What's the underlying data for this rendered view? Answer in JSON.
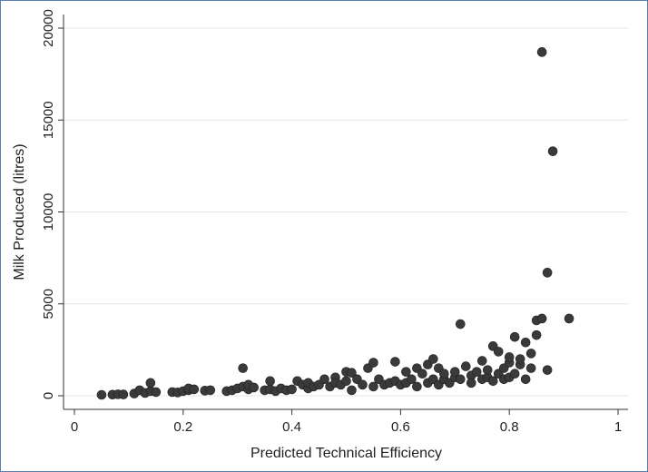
{
  "chart_data": {
    "type": "scatter",
    "title": "",
    "xlabel": "Predicted Technical Efficiency",
    "ylabel": "Milk Produced (litres)",
    "xlim": [
      0,
      1
    ],
    "ylim": [
      0,
      20000
    ],
    "x_ticks": [
      0,
      0.2,
      0.4,
      0.6,
      0.8,
      1
    ],
    "x_tick_labels": [
      "0",
      "0.2",
      "0.4",
      "0.6",
      "0.8",
      "1"
    ],
    "y_ticks": [
      0,
      5000,
      10000,
      15000,
      20000
    ],
    "y_tick_labels": [
      "0",
      "5000",
      "10000",
      "15000",
      "20000"
    ],
    "grid": "horizontal",
    "legend": "none",
    "colors": {
      "marker": "#3a3a3a",
      "plot_background": "#ffffff",
      "grid": "#e6e6e6",
      "frame": "#5b7fb0"
    },
    "series": [
      {
        "points": [
          [
            0.05,
            50
          ],
          [
            0.07,
            60
          ],
          [
            0.08,
            80
          ],
          [
            0.09,
            70
          ],
          [
            0.11,
            120
          ],
          [
            0.12,
            300
          ],
          [
            0.13,
            150
          ],
          [
            0.14,
            250
          ],
          [
            0.14,
            700
          ],
          [
            0.15,
            200
          ],
          [
            0.18,
            200
          ],
          [
            0.19,
            180
          ],
          [
            0.2,
            250
          ],
          [
            0.21,
            300
          ],
          [
            0.21,
            400
          ],
          [
            0.22,
            350
          ],
          [
            0.24,
            280
          ],
          [
            0.25,
            300
          ],
          [
            0.28,
            250
          ],
          [
            0.29,
            300
          ],
          [
            0.3,
            400
          ],
          [
            0.31,
            500
          ],
          [
            0.31,
            1500
          ],
          [
            0.32,
            350
          ],
          [
            0.32,
            600
          ],
          [
            0.33,
            450
          ],
          [
            0.35,
            300
          ],
          [
            0.36,
            350
          ],
          [
            0.36,
            800
          ],
          [
            0.37,
            250
          ],
          [
            0.38,
            400
          ],
          [
            0.39,
            300
          ],
          [
            0.4,
            350
          ],
          [
            0.41,
            800
          ],
          [
            0.42,
            600
          ],
          [
            0.43,
            400
          ],
          [
            0.43,
            700
          ],
          [
            0.44,
            500
          ],
          [
            0.45,
            600
          ],
          [
            0.46,
            900
          ],
          [
            0.47,
            500
          ],
          [
            0.48,
            1000
          ],
          [
            0.48,
            700
          ],
          [
            0.49,
            600
          ],
          [
            0.5,
            1300
          ],
          [
            0.5,
            800
          ],
          [
            0.51,
            1250
          ],
          [
            0.51,
            300
          ],
          [
            0.52,
            900
          ],
          [
            0.53,
            600
          ],
          [
            0.54,
            1500
          ],
          [
            0.55,
            1800
          ],
          [
            0.55,
            500
          ],
          [
            0.56,
            900
          ],
          [
            0.57,
            600
          ],
          [
            0.58,
            700
          ],
          [
            0.59,
            800
          ],
          [
            0.59,
            1850
          ],
          [
            0.6,
            600
          ],
          [
            0.61,
            700
          ],
          [
            0.61,
            1300
          ],
          [
            0.62,
            900
          ],
          [
            0.63,
            1500
          ],
          [
            0.63,
            500
          ],
          [
            0.64,
            1200
          ],
          [
            0.65,
            1700
          ],
          [
            0.65,
            700
          ],
          [
            0.66,
            2000
          ],
          [
            0.66,
            900
          ],
          [
            0.67,
            600
          ],
          [
            0.67,
            1500
          ],
          [
            0.68,
            900
          ],
          [
            0.68,
            1200
          ],
          [
            0.69,
            700
          ],
          [
            0.7,
            1000
          ],
          [
            0.7,
            1300
          ],
          [
            0.71,
            3900
          ],
          [
            0.71,
            900
          ],
          [
            0.72,
            1600
          ],
          [
            0.73,
            1100
          ],
          [
            0.73,
            700
          ],
          [
            0.74,
            1300
          ],
          [
            0.75,
            900
          ],
          [
            0.75,
            1900
          ],
          [
            0.76,
            1000
          ],
          [
            0.76,
            1400
          ],
          [
            0.77,
            2700
          ],
          [
            0.77,
            800
          ],
          [
            0.78,
            2400
          ],
          [
            0.78,
            1200
          ],
          [
            0.79,
            900
          ],
          [
            0.79,
            1500
          ],
          [
            0.8,
            1800
          ],
          [
            0.8,
            2100
          ],
          [
            0.8,
            1000
          ],
          [
            0.81,
            3200
          ],
          [
            0.81,
            1200
          ],
          [
            0.82,
            1700
          ],
          [
            0.82,
            2000
          ],
          [
            0.83,
            2900
          ],
          [
            0.83,
            900
          ],
          [
            0.84,
            1500
          ],
          [
            0.84,
            2300
          ],
          [
            0.85,
            3300
          ],
          [
            0.85,
            4100
          ],
          [
            0.86,
            4200
          ],
          [
            0.86,
            18700
          ],
          [
            0.87,
            1400
          ],
          [
            0.87,
            6700
          ],
          [
            0.88,
            13300
          ],
          [
            0.91,
            4200
          ]
        ]
      }
    ]
  }
}
